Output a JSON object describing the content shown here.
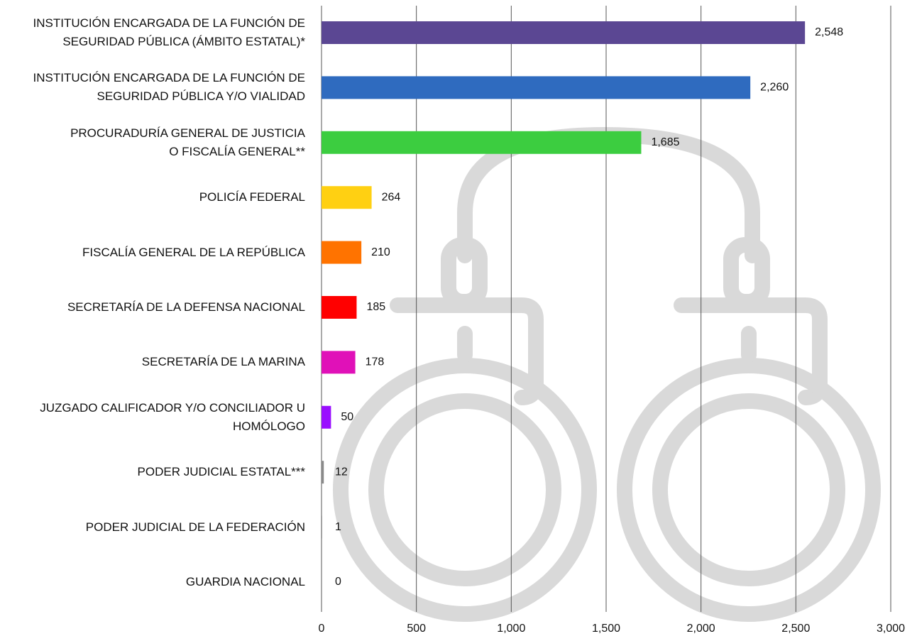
{
  "chart_data": {
    "type": "bar",
    "orientation": "horizontal",
    "categories": [
      "INSTITUCIÓN ENCARGADA DE LA FUNCIÓN DE\nSEGURIDAD PÚBLICA (ÁMBITO ESTATAL)*",
      "INSTITUCIÓN ENCARGADA DE LA FUNCIÓN DE\nSEGURIDAD PÚBLICA Y/O VIALIDAD",
      "PROCURADURÍA GENERAL DE JUSTICIA\nO FISCALÍA GENERAL**",
      "POLICÍA FEDERAL",
      "FISCALÍA GENERAL DE LA REPÚBLICA",
      "SECRETARÍA DE LA DEFENSA NACIONAL",
      "SECRETARÍA DE LA MARINA",
      "JUZGADO CALIFICADOR Y/O CONCILIADOR U\nHOMÓLOGO",
      "PODER JUDICIAL ESTATAL***",
      "PODER JUDICIAL DE LA FEDERACIÓN",
      "GUARDIA NACIONAL"
    ],
    "values": [
      2548,
      2260,
      1685,
      264,
      210,
      185,
      178,
      50,
      12,
      1,
      0
    ],
    "value_labels": [
      "2,548",
      "2,260",
      "1,685",
      "264",
      "210",
      "185",
      "178",
      "50",
      "12",
      "1",
      "0"
    ],
    "colors": [
      "#5b4793",
      "#2f6bbf",
      "#3ccd40",
      "#ffd012",
      "#ff7300",
      "#ff0000",
      "#e011b8",
      "#9a0fff",
      "#8a8a8a",
      "#222222",
      "#cccccc"
    ],
    "xlim": [
      0,
      3000
    ],
    "xticks": [
      0,
      {
        "value": 500,
        "label": "500"
      },
      {
        "value": 1000,
        "label": "1,000"
      },
      {
        "value": 1500,
        "label": "1,500"
      },
      {
        "value": 2000,
        "label": "2,000"
      },
      {
        "value": 2500,
        "label": "2,500"
      },
      {
        "value": 3000,
        "label": "3,000"
      }
    ],
    "grid": true
  }
}
